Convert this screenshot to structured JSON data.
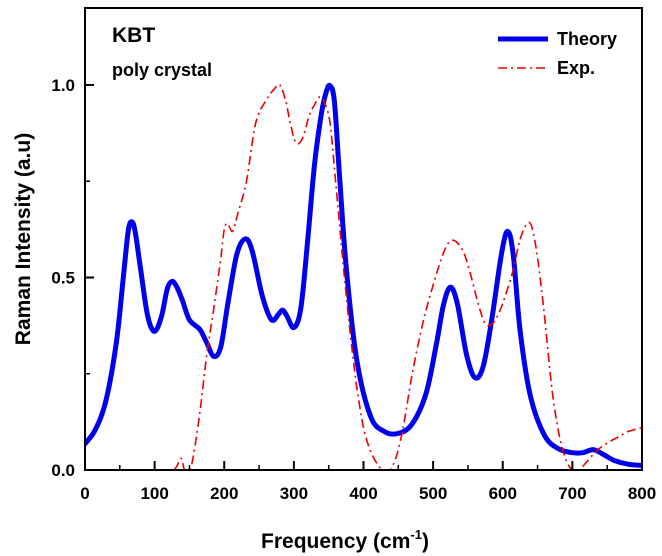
{
  "chart_data": {
    "type": "line",
    "annotations": {
      "material": "KBT",
      "sample": "poly crystal"
    },
    "xlabel": {
      "prefix": "Frequency (cm",
      "sup": "-1",
      "suffix": ")"
    },
    "ylabel": "Raman Intensity (a.u)",
    "xlim": [
      0,
      800
    ],
    "ylim": [
      0,
      1.2
    ],
    "x_ticks": [
      "0",
      "100",
      "200",
      "300",
      "400",
      "500",
      "600",
      "700",
      "800"
    ],
    "y_ticks": [
      "0.0",
      "0.5",
      "1.0"
    ],
    "legend_position": "top-right",
    "grid": false,
    "series": [
      {
        "name": "Theory",
        "color": "#0000ee",
        "style": "solid-thick",
        "points": [
          [
            0,
            0.068
          ],
          [
            15,
            0.105
          ],
          [
            30,
            0.18
          ],
          [
            45,
            0.33
          ],
          [
            55,
            0.5
          ],
          [
            62,
            0.62
          ],
          [
            67,
            0.645
          ],
          [
            72,
            0.62
          ],
          [
            80,
            0.52
          ],
          [
            90,
            0.4
          ],
          [
            100,
            0.36
          ],
          [
            110,
            0.4
          ],
          [
            118,
            0.47
          ],
          [
            125,
            0.49
          ],
          [
            132,
            0.475
          ],
          [
            140,
            0.44
          ],
          [
            150,
            0.39
          ],
          [
            165,
            0.365
          ],
          [
            175,
            0.33
          ],
          [
            185,
            0.295
          ],
          [
            195,
            0.32
          ],
          [
            205,
            0.43
          ],
          [
            218,
            0.56
          ],
          [
            230,
            0.6
          ],
          [
            240,
            0.57
          ],
          [
            255,
            0.45
          ],
          [
            268,
            0.39
          ],
          [
            278,
            0.405
          ],
          [
            284,
            0.415
          ],
          [
            290,
            0.4
          ],
          [
            300,
            0.37
          ],
          [
            310,
            0.42
          ],
          [
            320,
            0.6
          ],
          [
            330,
            0.8
          ],
          [
            340,
            0.93
          ],
          [
            347,
            0.985
          ],
          [
            352,
            0.998
          ],
          [
            358,
            0.96
          ],
          [
            365,
            0.78
          ],
          [
            375,
            0.53
          ],
          [
            390,
            0.29
          ],
          [
            410,
            0.14
          ],
          [
            430,
            0.1
          ],
          [
            450,
            0.095
          ],
          [
            470,
            0.12
          ],
          [
            490,
            0.2
          ],
          [
            505,
            0.33
          ],
          [
            515,
            0.43
          ],
          [
            525,
            0.475
          ],
          [
            535,
            0.43
          ],
          [
            548,
            0.3
          ],
          [
            560,
            0.24
          ],
          [
            572,
            0.27
          ],
          [
            585,
            0.4
          ],
          [
            598,
            0.56
          ],
          [
            607,
            0.62
          ],
          [
            615,
            0.56
          ],
          [
            625,
            0.36
          ],
          [
            640,
            0.19
          ],
          [
            660,
            0.09
          ],
          [
            680,
            0.055
          ],
          [
            700,
            0.045
          ],
          [
            715,
            0.045
          ],
          [
            730,
            0.053
          ],
          [
            745,
            0.04
          ],
          [
            760,
            0.025
          ],
          [
            780,
            0.015
          ],
          [
            800,
            0.012
          ]
        ]
      },
      {
        "name": "Exp.",
        "color": "#ee0000",
        "style": "dash-dot",
        "points": [
          [
            128,
            0.0
          ],
          [
            132,
            0.01
          ],
          [
            138,
            0.03
          ],
          [
            143,
            0.0
          ],
          [
            150,
            0.0
          ],
          [
            155,
            0.03
          ],
          [
            165,
            0.15
          ],
          [
            175,
            0.3
          ],
          [
            185,
            0.42
          ],
          [
            195,
            0.55
          ],
          [
            200,
            0.625
          ],
          [
            205,
            0.64
          ],
          [
            212,
            0.62
          ],
          [
            220,
            0.67
          ],
          [
            232,
            0.75
          ],
          [
            245,
            0.9
          ],
          [
            260,
            0.96
          ],
          [
            272,
            0.99
          ],
          [
            280,
            1.0
          ],
          [
            288,
            0.96
          ],
          [
            295,
            0.9
          ],
          [
            303,
            0.85
          ],
          [
            312,
            0.86
          ],
          [
            322,
            0.92
          ],
          [
            330,
            0.95
          ],
          [
            338,
            0.97
          ],
          [
            345,
            0.95
          ],
          [
            352,
            0.9
          ],
          [
            360,
            0.75
          ],
          [
            370,
            0.55
          ],
          [
            380,
            0.37
          ],
          [
            390,
            0.22
          ],
          [
            400,
            0.11
          ],
          [
            410,
            0.05
          ],
          [
            420,
            0.015
          ],
          [
            428,
            0.0
          ],
          [
            438,
            0.0
          ],
          [
            448,
            0.04
          ],
          [
            458,
            0.12
          ],
          [
            470,
            0.25
          ],
          [
            485,
            0.38
          ],
          [
            500,
            0.48
          ],
          [
            515,
            0.565
          ],
          [
            525,
            0.595
          ],
          [
            535,
            0.59
          ],
          [
            545,
            0.56
          ],
          [
            555,
            0.5
          ],
          [
            565,
            0.43
          ],
          [
            575,
            0.38
          ],
          [
            585,
            0.38
          ],
          [
            595,
            0.41
          ],
          [
            605,
            0.46
          ],
          [
            615,
            0.52
          ],
          [
            625,
            0.6
          ],
          [
            635,
            0.64
          ],
          [
            642,
            0.63
          ],
          [
            650,
            0.55
          ],
          [
            660,
            0.4
          ],
          [
            670,
            0.22
          ],
          [
            680,
            0.1
          ],
          [
            690,
            0.03
          ],
          [
            700,
            0.0
          ],
          [
            710,
            0.0
          ],
          [
            720,
            0.02
          ],
          [
            735,
            0.05
          ],
          [
            750,
            0.07
          ],
          [
            765,
            0.085
          ],
          [
            780,
            0.1
          ],
          [
            800,
            0.11
          ]
        ]
      }
    ]
  }
}
